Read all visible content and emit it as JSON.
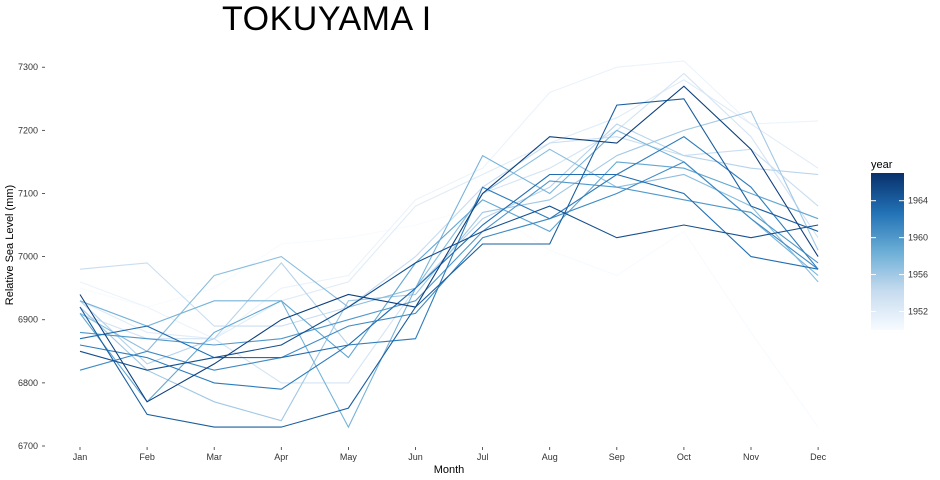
{
  "chart_data": {
    "type": "line",
    "title": "TOKUYAMA I",
    "xlabel": "Month",
    "ylabel": "Relative Sea Level (mm)",
    "categories": [
      "Jan",
      "Feb",
      "Mar",
      "Apr",
      "May",
      "Jun",
      "Jul",
      "Aug",
      "Sep",
      "Oct",
      "Nov",
      "Dec"
    ],
    "ylim": [
      6700,
      7320
    ],
    "yticks": [
      6700,
      6800,
      6900,
      7000,
      7100,
      7200,
      7300
    ],
    "grid": false,
    "legend": {
      "title": "year",
      "placement": "right",
      "ticks": [
        1964,
        1960,
        1956,
        1952
      ],
      "range": [
        1950,
        1967
      ]
    },
    "color_scale": {
      "low": "#f7fbff",
      "high": "#08306b"
    },
    "series": [
      {
        "year": 1950,
        "values": [
          6950,
          6920,
          6950,
          7020,
          7030,
          7050,
          7080,
          7010,
          6970,
          7040,
          6880,
          6730
        ]
      },
      {
        "year": 1951,
        "values": [
          6960,
          6920,
          6870,
          6950,
          6970,
          7090,
          7140,
          7260,
          7300,
          7310,
          7210,
          7215
        ]
      },
      {
        "year": 1952,
        "values": [
          6930,
          6880,
          6870,
          6930,
          6960,
          7080,
          7130,
          7180,
          7220,
          7280,
          7210,
          7140
        ]
      },
      {
        "year": 1953,
        "values": [
          6910,
          6870,
          6870,
          6800,
          6800,
          6950,
          7100,
          7140,
          7200,
          7290,
          7190,
          7030
        ]
      },
      {
        "year": 1954,
        "values": [
          6980,
          6990,
          6890,
          6890,
          6920,
          7000,
          7110,
          7180,
          7190,
          7160,
          7170,
          7080
        ]
      },
      {
        "year": 1955,
        "values": [
          6930,
          6830,
          6870,
          6990,
          6860,
          6950,
          7060,
          7110,
          7210,
          7160,
          7140,
          7130
        ]
      },
      {
        "year": 1956,
        "values": [
          6920,
          6820,
          6770,
          6740,
          6930,
          6940,
          7070,
          7090,
          7160,
          7200,
          7230,
          7010
        ]
      },
      {
        "year": 1957,
        "values": [
          6910,
          6850,
          6970,
          7000,
          6920,
          6950,
          7100,
          7170,
          7110,
          7130,
          7080,
          6960
        ]
      },
      {
        "year": 1958,
        "values": [
          6930,
          6890,
          6930,
          6930,
          6730,
          6950,
          7160,
          7100,
          7200,
          7150,
          7060,
          6970
        ]
      },
      {
        "year": 1959,
        "values": [
          6910,
          6770,
          6880,
          6930,
          6840,
          6990,
          7090,
          7040,
          7150,
          7140,
          7100,
          7060
        ]
      },
      {
        "year": 1960,
        "values": [
          6880,
          6870,
          6860,
          6870,
          6900,
          6930,
          7040,
          7120,
          7110,
          7090,
          7070,
          6990
        ]
      },
      {
        "year": 1961,
        "values": [
          6820,
          6850,
          6820,
          6840,
          6890,
          6910,
          7030,
          7060,
          7100,
          7150,
          7060,
          6980
        ]
      },
      {
        "year": 1962,
        "values": [
          6860,
          6840,
          6800,
          6790,
          6860,
          6870,
          7110,
          7060,
          7130,
          7190,
          7110,
          6980
        ]
      },
      {
        "year": 1963,
        "values": [
          6870,
          6890,
          6840,
          6840,
          6860,
          6950,
          7050,
          7130,
          7130,
          7100,
          7000,
          6980
        ]
      },
      {
        "year": 1964,
        "values": [
          6920,
          6750,
          6730,
          6730,
          6760,
          6920,
          7020,
          7020,
          7240,
          7250,
          7080,
          7040
        ]
      },
      {
        "year": 1965,
        "values": [
          6850,
          6820,
          6840,
          6860,
          6920,
          6990,
          7040,
          7080,
          7030,
          7050,
          7030,
          7050
        ]
      },
      {
        "year": 1966,
        "values": [
          6940,
          6770,
          6830,
          6900,
          6940,
          6920,
          7100,
          7190,
          7180,
          7270,
          7170,
          7000
        ]
      }
    ]
  }
}
